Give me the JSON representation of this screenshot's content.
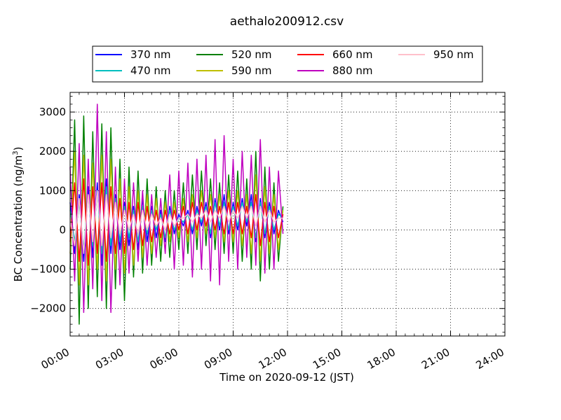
{
  "chart_data": {
    "type": "line",
    "title": "aethalo200912.csv",
    "xlabel": "Time on 2020-09-12 (JST)",
    "ylabel_main": "BC Concentration (ng/m",
    "ylabel_sup": "3",
    "ylabel_end": ")",
    "x_unit": "hours",
    "xlim": [
      0,
      24
    ],
    "ylim": [
      -2700,
      3500
    ],
    "x_ticks": [
      0,
      3,
      6,
      9,
      12,
      15,
      18,
      21,
      24
    ],
    "x_tick_labels": [
      "00:00",
      "03:00",
      "06:00",
      "09:00",
      "12:00",
      "15:00",
      "18:00",
      "21:00",
      "24:00"
    ],
    "y_ticks": [
      -2000,
      -1000,
      0,
      1000,
      2000,
      3000
    ],
    "y_tick_labels": [
      "−2000",
      "−1000",
      "0",
      "1000",
      "2000",
      "3000"
    ],
    "grid": true,
    "legend_placement": "top-center",
    "series": [
      {
        "name": "370 nm",
        "color": "#0000ff",
        "x": [
          0.0,
          0.25,
          0.5,
          0.75,
          1.0,
          1.25,
          1.5,
          1.75,
          2.0,
          2.25,
          2.5,
          2.75,
          3.0,
          3.25,
          3.5,
          3.75,
          4.0,
          4.25,
          4.5,
          4.75,
          5.0,
          5.25,
          5.5,
          5.75,
          6.0,
          6.25,
          6.5,
          6.75,
          7.0,
          7.25,
          7.5,
          7.75,
          8.0,
          8.25,
          8.5,
          8.75,
          9.0,
          9.25,
          9.5,
          9.75,
          10.0,
          10.25,
          10.5,
          10.75,
          11.0,
          11.25,
          11.5,
          11.75
        ],
        "values": [
          700,
          -600,
          900,
          -800,
          1100,
          -700,
          1200,
          -900,
          1300,
          -600,
          900,
          -500,
          700,
          -400,
          600,
          -500,
          800,
          -300,
          600,
          -200,
          500,
          -300,
          600,
          -100,
          400,
          100,
          500,
          -100,
          600,
          100,
          700,
          -200,
          800,
          0,
          900,
          -100,
          700,
          0,
          800,
          100,
          900,
          -300,
          800,
          -200,
          700,
          -100,
          500,
          200
        ]
      },
      {
        "name": "470 nm",
        "color": "#00bfbf",
        "x": [
          0.0,
          0.25,
          0.5,
          0.75,
          1.0,
          1.25,
          1.5,
          1.75,
          2.0,
          2.25,
          2.5,
          2.75,
          3.0,
          3.25,
          3.5,
          3.75,
          4.0,
          4.25,
          4.5,
          4.75,
          5.0,
          5.25,
          5.5,
          5.75,
          6.0,
          6.25,
          6.5,
          6.75,
          7.0,
          7.25,
          7.5,
          7.75,
          8.0,
          8.25,
          8.5,
          8.75,
          9.0,
          9.25,
          9.5,
          9.75,
          10.0,
          10.25,
          10.5,
          10.75,
          11.0,
          11.25,
          11.5,
          11.75
        ],
        "values": [
          500,
          -300,
          700,
          -500,
          900,
          -400,
          1000,
          -600,
          1100,
          -400,
          800,
          -300,
          600,
          -200,
          500,
          -300,
          600,
          -100,
          500,
          0,
          400,
          -200,
          500,
          0,
          300,
          200,
          400,
          0,
          500,
          200,
          600,
          -100,
          700,
          100,
          700,
          0,
          600,
          100,
          700,
          200,
          700,
          -200,
          700,
          -100,
          600,
          0,
          400,
          300
        ]
      },
      {
        "name": "520 nm",
        "color": "#008000",
        "x": [
          0.0,
          0.25,
          0.5,
          0.75,
          1.0,
          1.25,
          1.5,
          1.75,
          2.0,
          2.25,
          2.5,
          2.75,
          3.0,
          3.25,
          3.5,
          3.75,
          4.0,
          4.25,
          4.5,
          4.75,
          5.0,
          5.25,
          5.5,
          5.75,
          6.0,
          6.25,
          6.5,
          6.75,
          7.0,
          7.25,
          7.5,
          7.75,
          8.0,
          8.25,
          8.5,
          8.75,
          9.0,
          9.25,
          9.5,
          9.75,
          10.0,
          10.25,
          10.5,
          10.75,
          11.0,
          11.25,
          11.5,
          11.75
        ],
        "values": [
          -1000,
          2800,
          -2400,
          2900,
          -2000,
          2500,
          -1700,
          2700,
          -2000,
          2600,
          -1500,
          1800,
          -1800,
          1600,
          -1200,
          1500,
          -1100,
          1300,
          -900,
          1100,
          -800,
          1000,
          -700,
          1000,
          -500,
          1200,
          -600,
          1400,
          -500,
          1500,
          -400,
          1300,
          -500,
          1200,
          -600,
          1400,
          -600,
          1500,
          -800,
          1300,
          -1000,
          2000,
          -1300,
          1600,
          -1000,
          1200,
          -800,
          600
        ]
      },
      {
        "name": "590 nm",
        "color": "#bfbf00",
        "x": [
          0.0,
          0.25,
          0.5,
          0.75,
          1.0,
          1.25,
          1.5,
          1.75,
          2.0,
          2.25,
          2.5,
          2.75,
          3.0,
          3.25,
          3.5,
          3.75,
          4.0,
          4.25,
          4.5,
          4.75,
          5.0,
          5.25,
          5.5,
          5.75,
          6.0,
          6.25,
          6.5,
          6.75,
          7.0,
          7.25,
          7.5,
          7.75,
          8.0,
          8.25,
          8.5,
          8.75,
          9.0,
          9.25,
          9.5,
          9.75,
          10.0,
          10.25,
          10.5,
          10.75,
          11.0,
          11.25,
          11.5,
          11.75
        ],
        "values": [
          -600,
          2000,
          -1400,
          1900,
          -1400,
          1700,
          -1000,
          1900,
          -1300,
          1800,
          -1000,
          1300,
          -1100,
          1100,
          -900,
          1000,
          -700,
          900,
          -600,
          800,
          -400,
          700,
          -300,
          700,
          -200,
          800,
          -300,
          900,
          -200,
          1000,
          -100,
          900,
          -200,
          900,
          -300,
          1000,
          -300,
          1000,
          -400,
          900,
          -600,
          1400,
          -800,
          1100,
          -600,
          900,
          -500,
          500
        ]
      },
      {
        "name": "660 nm",
        "color": "#ff0000",
        "x": [
          0.0,
          0.25,
          0.5,
          0.75,
          1.0,
          1.25,
          1.5,
          1.75,
          2.0,
          2.25,
          2.5,
          2.75,
          3.0,
          3.25,
          3.5,
          3.75,
          4.0,
          4.25,
          4.5,
          4.75,
          5.0,
          5.25,
          5.5,
          5.75,
          6.0,
          6.25,
          6.5,
          6.75,
          7.0,
          7.25,
          7.5,
          7.75,
          8.0,
          8.25,
          8.5,
          8.75,
          9.0,
          9.25,
          9.5,
          9.75,
          10.0,
          10.25,
          10.5,
          10.75,
          11.0,
          11.25,
          11.5,
          11.75
        ],
        "values": [
          -300,
          1200,
          -800,
          1300,
          -900,
          1100,
          -600,
          1200,
          -800,
          1100,
          -600,
          800,
          -600,
          700,
          -500,
          700,
          -400,
          600,
          -300,
          500,
          -200,
          500,
          -100,
          500,
          0,
          600,
          -100,
          700,
          0,
          700,
          100,
          600,
          0,
          600,
          -100,
          700,
          -100,
          700,
          -100,
          600,
          -200,
          900,
          -400,
          700,
          -300,
          600,
          -200,
          400
        ]
      },
      {
        "name": "880 nm",
        "color": "#bf00bf",
        "x": [
          0.0,
          0.25,
          0.5,
          0.75,
          1.0,
          1.25,
          1.5,
          1.75,
          2.0,
          2.25,
          2.5,
          2.75,
          3.0,
          3.25,
          3.5,
          3.75,
          4.0,
          4.25,
          4.5,
          4.75,
          5.0,
          5.25,
          5.5,
          5.75,
          6.0,
          6.25,
          6.5,
          6.75,
          7.0,
          7.25,
          7.5,
          7.75,
          8.0,
          8.25,
          8.5,
          8.75,
          9.0,
          9.25,
          9.5,
          9.75,
          10.0,
          10.25,
          10.5,
          10.75,
          11.0,
          11.25,
          11.5,
          11.75
        ],
        "values": [
          1600,
          -1300,
          2200,
          -2100,
          1800,
          -1500,
          3200,
          -1800,
          2500,
          -2100,
          1600,
          -1400,
          1300,
          -1100,
          1200,
          -800,
          1000,
          -900,
          900,
          -700,
          800,
          -600,
          1400,
          -1000,
          1500,
          -900,
          1700,
          -1200,
          1800,
          -1000,
          1900,
          -1300,
          2300,
          -1400,
          2400,
          -800,
          1800,
          -1000,
          2000,
          -700,
          1900,
          -900,
          2300,
          -1100,
          1600,
          -1000,
          1500,
          -100
        ]
      },
      {
        "name": "950 nm",
        "color": "#ffc0cb",
        "x": [
          0.0,
          0.25,
          0.5,
          0.75,
          1.0,
          1.25,
          1.5,
          1.75,
          2.0,
          2.25,
          2.5,
          2.75,
          3.0,
          3.25,
          3.5,
          3.75,
          4.0,
          4.25,
          4.5,
          4.75,
          5.0,
          5.25,
          5.5,
          5.75,
          6.0,
          6.25,
          6.5,
          6.75,
          7.0,
          7.25,
          7.5,
          7.75,
          8.0,
          8.25,
          8.5,
          8.75,
          9.0,
          9.25,
          9.5,
          9.75,
          10.0,
          10.25,
          10.5,
          10.75,
          11.0,
          11.25,
          11.5,
          11.75
        ],
        "values": [
          300,
          -400,
          800,
          -600,
          900,
          -300,
          1000,
          -400,
          900,
          -200,
          700,
          -100,
          500,
          0,
          400,
          -100,
          500,
          0,
          400,
          100,
          300,
          0,
          400,
          100,
          300,
          300,
          400,
          200,
          400,
          300,
          500,
          200,
          500,
          300,
          600,
          200,
          500,
          300,
          600,
          300,
          600,
          100,
          600,
          200,
          500,
          200,
          300,
          300
        ]
      }
    ]
  }
}
